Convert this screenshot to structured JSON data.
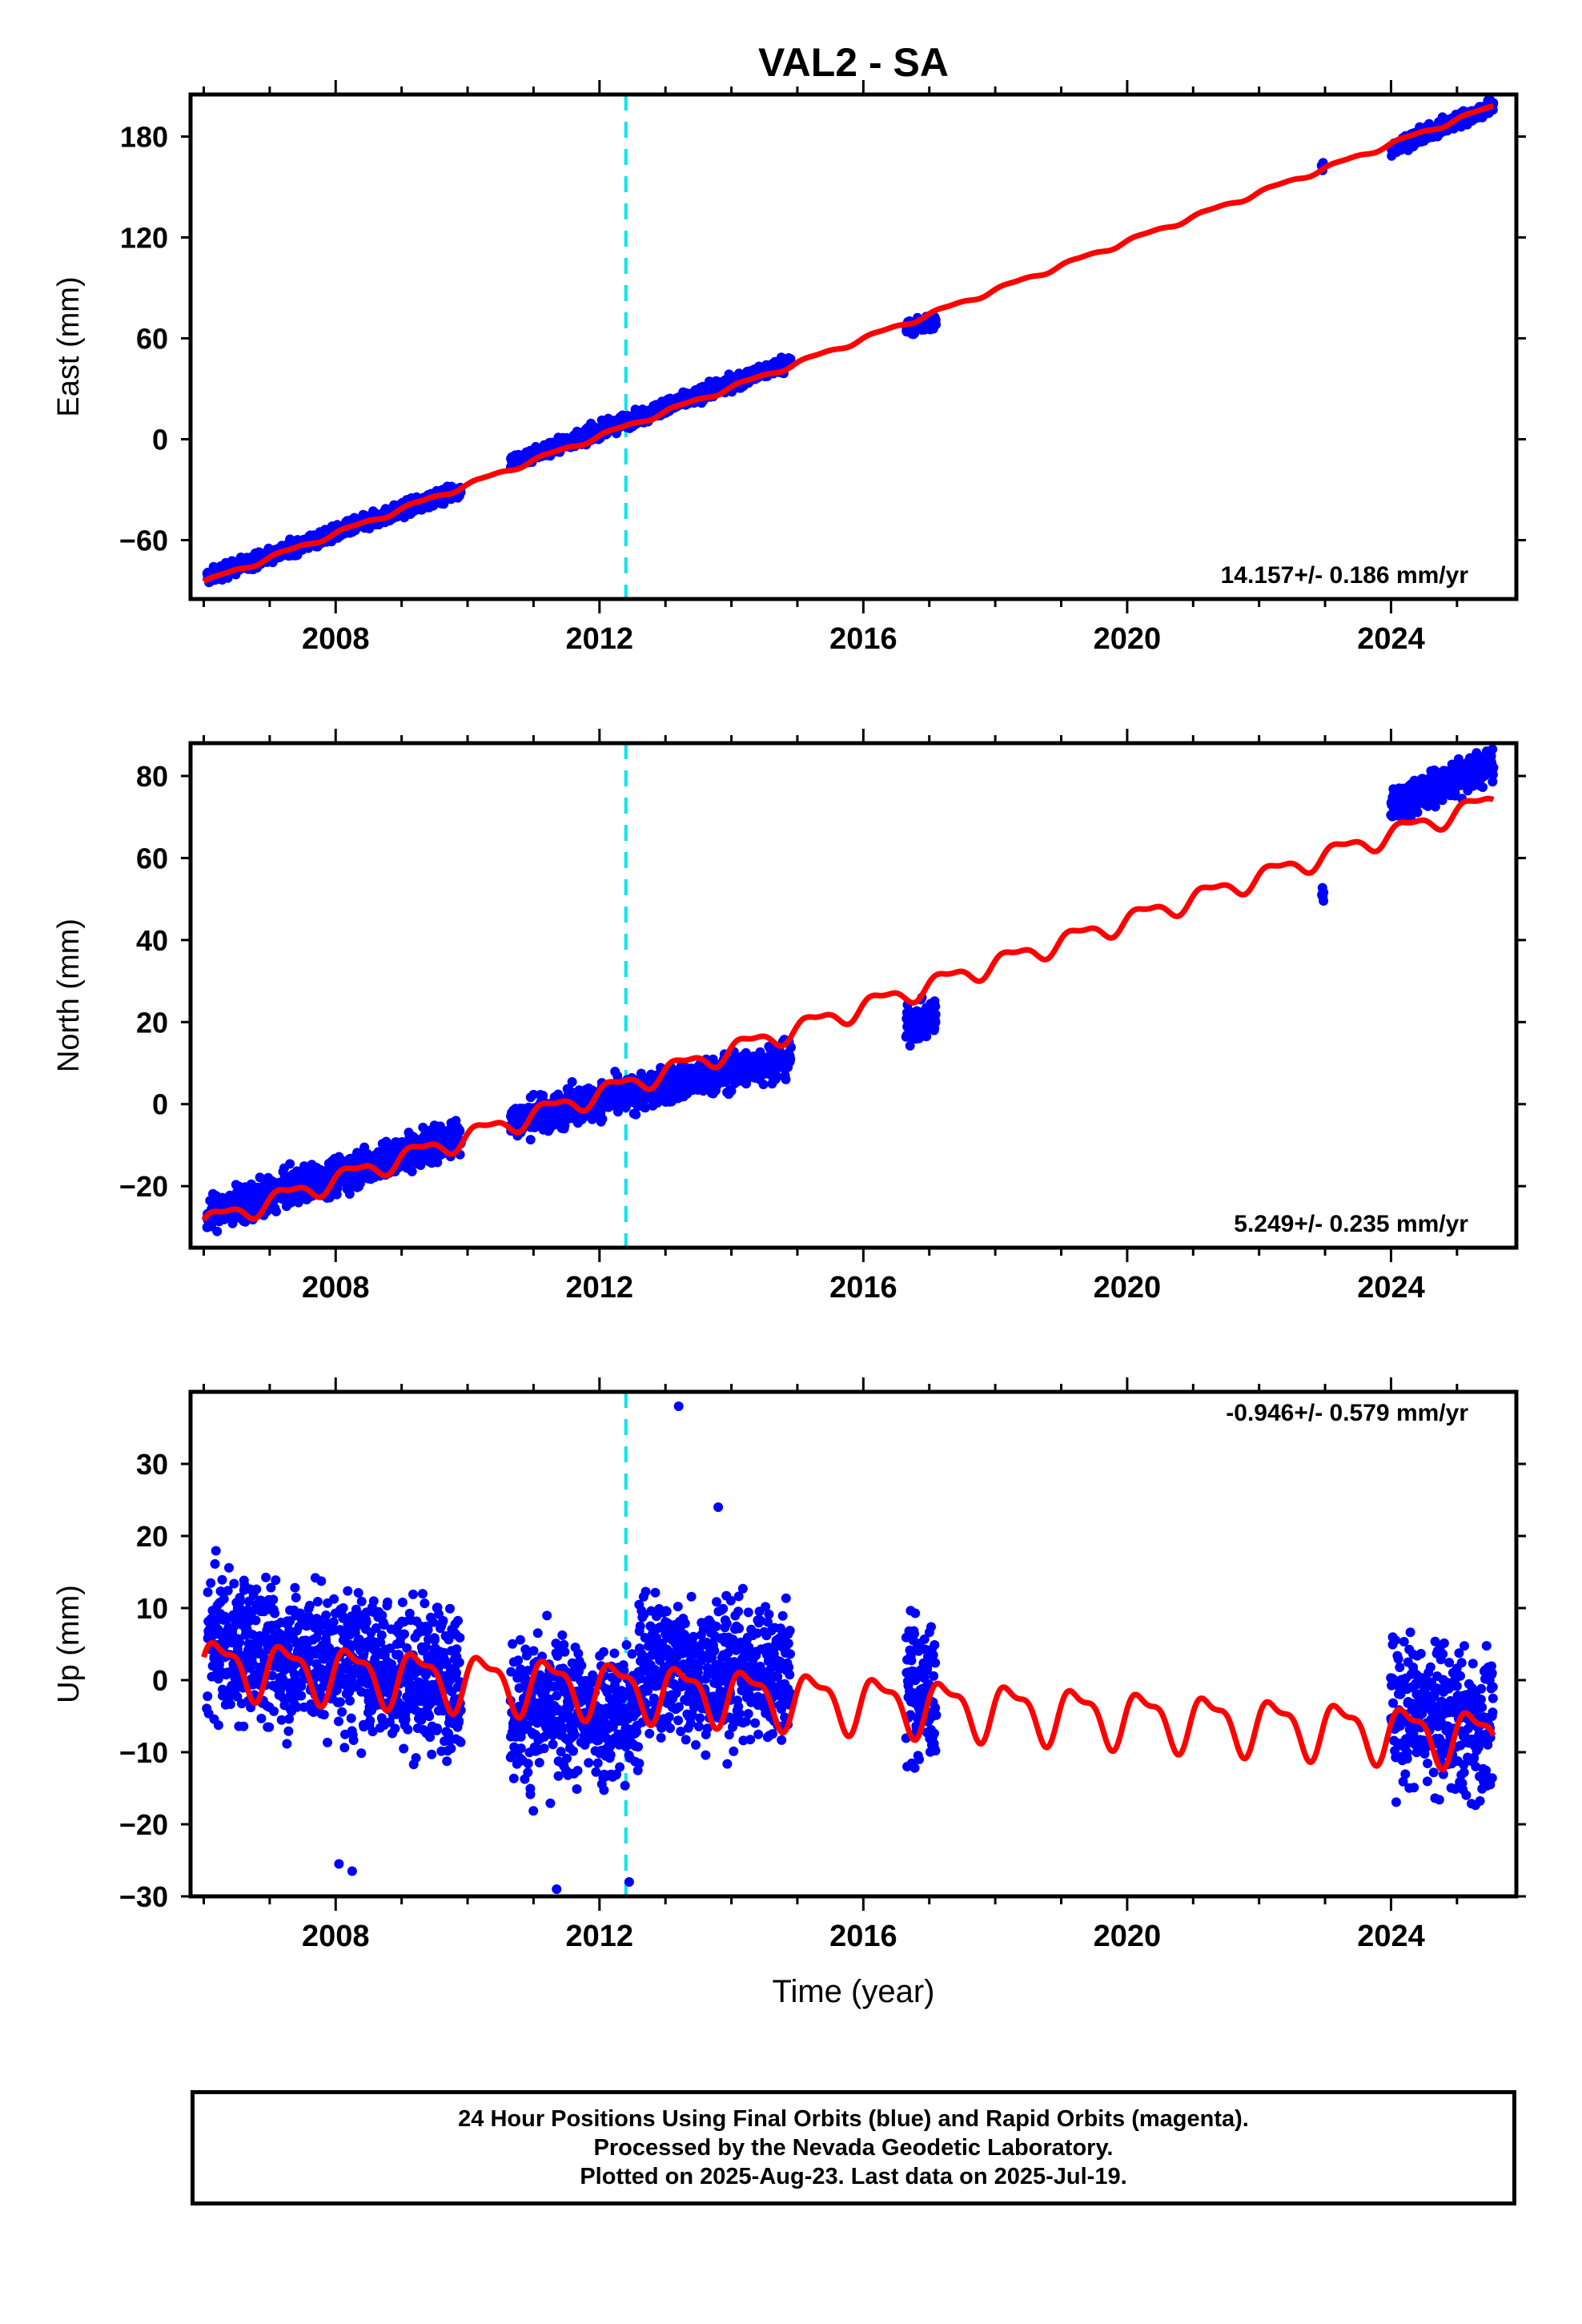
{
  "title": "VAL2 - SA",
  "colors": {
    "final_orbit_points": "#0000ff",
    "model_fit_line": "#ff0000",
    "event_marker_line": "#00e5ee",
    "frame": "#000000"
  },
  "chart_data": [
    {
      "type": "scatter",
      "panel": "east",
      "ylabel": "East (mm)",
      "xlim": [
        2005.8,
        2025.9
      ],
      "ylim": [
        -95,
        205
      ],
      "yticks": [
        -60,
        0,
        60,
        120,
        180
      ],
      "ytick_labels": [
        "−60",
        "0",
        "60",
        "120",
        "180"
      ],
      "xticks": [
        2008,
        2012,
        2016,
        2020,
        2024
      ],
      "xtick_labels": [
        "2008",
        "2012",
        "2016",
        "2020",
        "2024"
      ],
      "event_marker_year": 2012.4,
      "rate_label": "14.157+/- 0.186 mm/yr",
      "rate_label_position": "bottom-right",
      "series": [
        {
          "name": "Final Orbits (blue)",
          "segments": [
            {
              "x_start": 2006.05,
              "x_end": 2009.9,
              "y_start": -82,
              "y_end": -30
            },
            {
              "x_start": 2010.65,
              "x_end": 2014.9,
              "y_start": -14,
              "y_end": 46
            },
            {
              "x_start": 2016.65,
              "x_end": 2017.1,
              "y_start": 66,
              "y_end": 70
            },
            {
              "x_start": 2022.95,
              "x_end": 2022.98,
              "y_start": 161,
              "y_end": 161
            },
            {
              "x_start": 2024.0,
              "x_end": 2025.55,
              "y_start": 173,
              "y_end": 198
            }
          ],
          "scatter_amplitude": 3
        },
        {
          "name": "Model fit (red)",
          "x_start": 2006.0,
          "x_end": 2025.55,
          "y_start": -85,
          "y_end": 198,
          "annual_amplitude": 1.2
        }
      ]
    },
    {
      "type": "scatter",
      "panel": "north",
      "ylabel": "North (mm)",
      "xlim": [
        2005.8,
        2025.9
      ],
      "ylim": [
        -35,
        88
      ],
      "yticks": [
        -20,
        0,
        20,
        40,
        60,
        80
      ],
      "ytick_labels": [
        "−20",
        "0",
        "20",
        "40",
        "60",
        "80"
      ],
      "xticks": [
        2008,
        2012,
        2016,
        2020,
        2024
      ],
      "xtick_labels": [
        "2008",
        "2012",
        "2016",
        "2020",
        "2024"
      ],
      "event_marker_year": 2012.4,
      "rate_label": "5.249+/- 0.235 mm/yr",
      "rate_label_position": "bottom-right",
      "series": [
        {
          "name": "Final Orbits (blue)",
          "segments": [
            {
              "x_start": 2006.05,
              "x_end": 2009.9,
              "y_start": -27,
              "y_end": -8
            },
            {
              "x_start": 2010.65,
              "x_end": 2014.9,
              "y_start": -4,
              "y_end": 11
            },
            {
              "x_start": 2016.65,
              "x_end": 2017.1,
              "y_start": 19,
              "y_end": 21
            },
            {
              "x_start": 2022.95,
              "x_end": 2022.98,
              "y_start": 51,
              "y_end": 51
            },
            {
              "x_start": 2024.0,
              "x_end": 2025.55,
              "y_start": 73,
              "y_end": 83
            }
          ],
          "scatter_amplitude": 3
        },
        {
          "name": "Model fit (red)",
          "x_start": 2006.0,
          "x_end": 2025.55,
          "y_start": -29,
          "y_end": 74,
          "annual_amplitude": 2.2
        }
      ]
    },
    {
      "type": "scatter",
      "panel": "up",
      "ylabel": "Up (mm)",
      "xlabel": "Time (year)",
      "xlim": [
        2005.8,
        2025.9
      ],
      "ylim": [
        -30,
        40
      ],
      "yticks": [
        -30,
        -20,
        -10,
        0,
        10,
        20,
        30
      ],
      "ytick_labels": [
        "−30",
        "−20",
        "−10",
        "0",
        "10",
        "20",
        "30"
      ],
      "xticks": [
        2008,
        2012,
        2016,
        2020,
        2024
      ],
      "xtick_labels": [
        "2008",
        "2012",
        "2016",
        "2020",
        "2024"
      ],
      "event_marker_year": 2012.4,
      "rate_label": "-0.946+/- 0.579 mm/yr",
      "rate_label_position": "top-right",
      "series": [
        {
          "name": "Final Orbits (blue)",
          "segments": [
            {
              "x_start": 2006.05,
              "x_end": 2009.9,
              "y_start": 5,
              "y_end": 0
            },
            {
              "x_start": 2010.65,
              "x_end": 2012.6,
              "y_start": -4,
              "y_end": -5
            },
            {
              "x_start": 2012.6,
              "x_end": 2014.9,
              "y_start": 2,
              "y_end": 1
            },
            {
              "x_start": 2016.65,
              "x_end": 2017.1,
              "y_start": -1,
              "y_end": -2
            },
            {
              "x_start": 2024.0,
              "x_end": 2025.55,
              "y_start": -4,
              "y_end": -7
            }
          ],
          "scatter_amplitude": 7,
          "outliers": [
            [
              2013.2,
              38
            ],
            [
              2011.35,
              -29
            ],
            [
              2012.45,
              -28
            ],
            [
              2008.05,
              -25.5
            ],
            [
              2008.25,
              -26.5
            ],
            [
              2013.8,
              24
            ]
          ]
        },
        {
          "name": "Model fit (red)",
          "x_start": 2006.0,
          "x_end": 2025.55,
          "y_start": 2,
          "y_end": -8,
          "annual_amplitude": 3.5
        }
      ]
    }
  ],
  "footer": {
    "line1": "24 Hour Positions Using Final Orbits (blue) and Rapid Orbits (magenta).",
    "line2": "Processed by the Nevada Geodetic Laboratory.",
    "line3": "Plotted on 2025-Aug-23. Last data on 2025-Jul-19."
  }
}
